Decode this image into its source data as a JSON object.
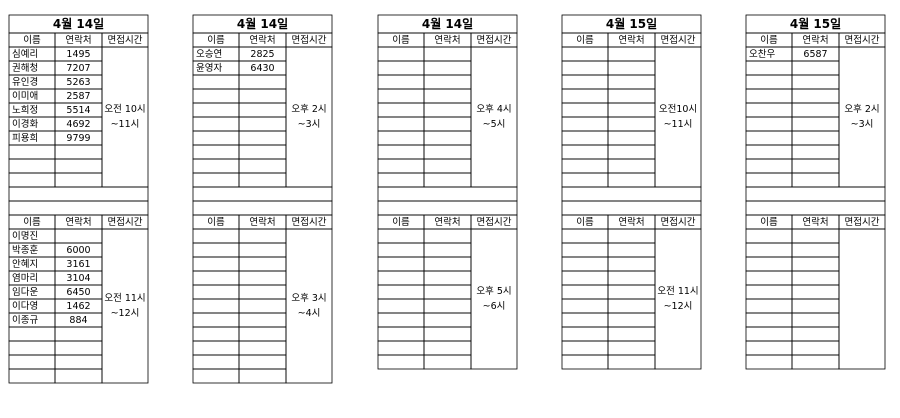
{
  "tables": [
    {
      "date": "4월 14일",
      "blocks": [
        {
          "header": [
            "이름",
            "연락처",
            "면접시간"
          ],
          "rows": [
            {
              "name": "심예리",
              "contact": "1495"
            },
            {
              "name": "권해청",
              "contact": "7207"
            },
            {
              "name": "유인경",
              "contact": "5263"
            },
            {
              "name": "이미애",
              "contact": "2587"
            },
            {
              "name": "노희정",
              "contact": "5514"
            },
            {
              "name": "이경화",
              "contact": "4692"
            },
            {
              "name": "피용희",
              "contact": "9799"
            }
          ],
          "time": [
            "오전 10시",
            "~11시"
          ]
        },
        {
          "header": [
            "이름",
            "연락처",
            "면접시간"
          ],
          "rows": [
            {
              "name": "이명진"
            },
            {
              "name": "박종훈",
              "contact": "6000"
            },
            {
              "name": "안혜지",
              "contact": "3161"
            },
            {
              "name": "염마리",
              "contact": "3104"
            },
            {
              "name": "임다운",
              "contact": "6450"
            },
            {
              "name": "이다영",
              "contact": "1462"
            },
            {
              "name": "이종규",
              "contact": "884"
            }
          ],
          "time": [
            "오전 11시",
            "~12시"
          ]
        }
      ]
    },
    {
      "date": "4월 14일",
      "blocks": [
        {
          "header": [
            "이름",
            "연락처",
            "면접시간"
          ],
          "rows": [
            {
              "name": "오승연",
              "contact": "2825"
            },
            {
              "name": "윤영자",
              "contact": "6430"
            }
          ],
          "time": [
            "오후 2시",
            "~3시"
          ]
        },
        {
          "header": [
            "이름",
            "연락처",
            "면접시간"
          ],
          "rows": [],
          "time": [
            "오후 3시",
            "~4시"
          ]
        }
      ]
    },
    {
      "date": "4월 14일",
      "blocks": [
        {
          "header": [
            "이름",
            "연락처",
            "면접시간"
          ],
          "rows": [],
          "time": [
            "오후 4시",
            "~5시"
          ]
        },
        {
          "header": [
            "이름",
            "연락처",
            "면접시간"
          ],
          "rows": [],
          "time": [
            "오후 5시",
            "~6시"
          ]
        }
      ]
    },
    {
      "date": "4월 15일",
      "blocks": [
        {
          "header": [
            "이름",
            "연락처",
            "면접시간"
          ],
          "rows": [],
          "time": [
            "오전10시",
            "~11시"
          ]
        },
        {
          "header": [
            "이름",
            "연락처",
            "면접시간"
          ],
          "rows": [],
          "time": [
            "오전 11시",
            "~12시"
          ]
        }
      ]
    },
    {
      "date": "4월 15일",
      "blocks": [
        {
          "header": [
            "이름",
            "연락처",
            "면접시간"
          ],
          "rows": [
            {
              "name": "오찬우",
              "contact": "6587"
            }
          ],
          "time": [
            "오후 2시",
            "~3시"
          ]
        },
        {
          "header": [
            "이름",
            "연락처",
            "면접시간"
          ],
          "rows": []
        }
      ]
    }
  ]
}
